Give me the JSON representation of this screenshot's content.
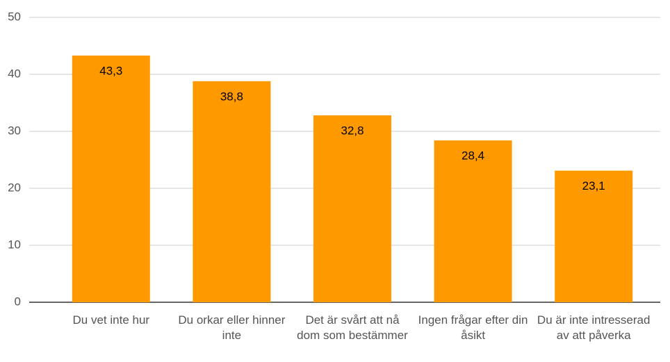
{
  "chart_data": {
    "type": "bar",
    "categories": [
      "Du vet inte hur",
      "Du orkar eller hinner inte",
      "Det är svårt att nå dom som bestämmer",
      "Ingen frågar efter din åsikt",
      "Du är inte intresserad av att påverka"
    ],
    "values": [
      43.3,
      38.8,
      32.8,
      28.4,
      23.1
    ],
    "value_labels": [
      "43,3",
      "38,8",
      "32,8",
      "28,4",
      "23,1"
    ],
    "color": "#ff9900",
    "ylim": [
      0,
      50
    ],
    "yticks": [
      0,
      10,
      20,
      30,
      40,
      50
    ],
    "grid": true
  }
}
